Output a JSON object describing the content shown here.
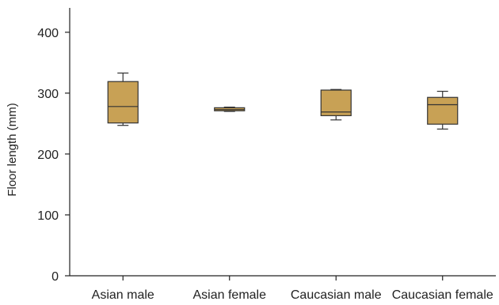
{
  "chart_data": {
    "type": "box",
    "title": "",
    "xlabel": "",
    "ylabel": "Floor length (mm)",
    "ylim": [
      0,
      440
    ],
    "yticks": [
      0,
      100,
      200,
      300,
      400
    ],
    "ytick_labels": [
      "0",
      "100",
      "200",
      "300",
      "400"
    ],
    "grid": false,
    "box_color": "#c8a155",
    "line_color": "#333333",
    "categories": [
      "Asian male",
      "Asian female",
      "Caucasian male",
      "Caucasian female"
    ],
    "boxes": [
      {
        "category": "Asian male",
        "min": 247,
        "q1": 251,
        "median": 278,
        "q3": 319,
        "max": 333
      },
      {
        "category": "Asian female",
        "min": 270,
        "q1": 271,
        "median": 273,
        "q3": 276,
        "max": 277
      },
      {
        "category": "Caucasian male",
        "min": 256,
        "q1": 263,
        "median": 269,
        "q3": 305,
        "max": 306
      },
      {
        "category": "Caucasian female",
        "min": 241,
        "q1": 249,
        "median": 281,
        "q3": 293,
        "max": 303
      }
    ]
  }
}
